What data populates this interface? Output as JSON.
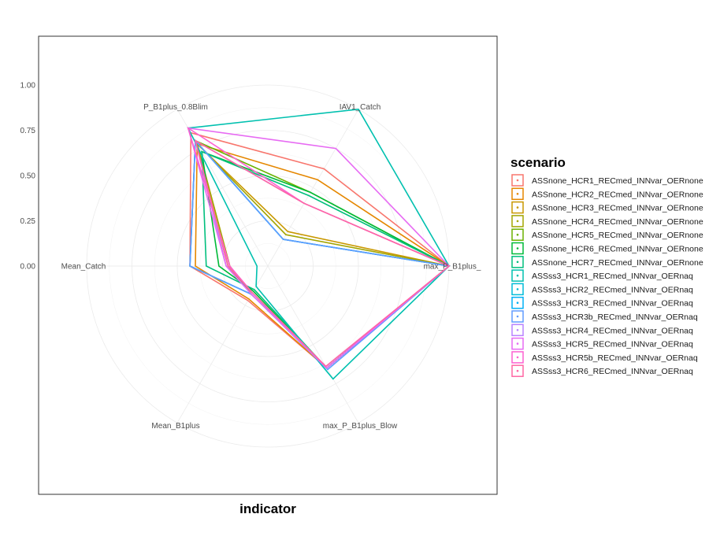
{
  "chart_data": {
    "type": "radar",
    "title": "",
    "xlabel": "indicator",
    "ylabel": "",
    "ylim": [
      0,
      1
    ],
    "yticks": [
      0.0,
      0.25,
      0.5,
      0.75,
      1.0
    ],
    "ytick_labels": [
      "0.00",
      "0.25",
      "0.50",
      "0.75",
      "1.00"
    ],
    "grid": true,
    "legend_title": "scenario",
    "legend_position": "right",
    "axes": [
      "IAV1_Catch",
      "max_P_B1plus_",
      "max_P_B1plus_Blow",
      "Mean_B1plus",
      "Mean_Catch",
      "P_B1plus_0.8Blim"
    ],
    "series": [
      {
        "name": "ASSnone_HCR1_RECmed_INNvar_OERnone",
        "color": "#F8766D",
        "values": [
          0.62,
          1.0,
          0.65,
          0.22,
          0.43,
          0.85
        ]
      },
      {
        "name": "ASSnone_HCR2_RECmed_INNvar_OERnone",
        "color": "#E58700",
        "values": [
          0.55,
          1.0,
          0.65,
          0.21,
          0.4,
          0.78
        ]
      },
      {
        "name": "ASSnone_HCR3_RECmed_INNvar_OERnone",
        "color": "#C99800",
        "values": [
          0.22,
          1.0,
          0.65,
          0.18,
          0.21,
          0.78
        ]
      },
      {
        "name": "ASSnone_HCR4_RECmed_INNvar_OERnone",
        "color": "#A3A500",
        "values": [
          0.2,
          1.0,
          0.65,
          0.18,
          0.21,
          0.78
        ]
      },
      {
        "name": "ASSnone_HCR5_RECmed_INNvar_OERnone",
        "color": "#6BB100",
        "values": [
          0.47,
          1.0,
          0.65,
          0.18,
          0.22,
          0.8
        ]
      },
      {
        "name": "ASSnone_HCR6_RECmed_INNvar_OERnone",
        "color": "#00BA38",
        "values": [
          0.47,
          1.0,
          0.65,
          0.16,
          0.27,
          0.73
        ]
      },
      {
        "name": "ASSnone_HCR7_RECmed_INNvar_OERnone",
        "color": "#00BF7D",
        "values": [
          0.45,
          1.0,
          0.65,
          0.15,
          0.34,
          0.73
        ]
      },
      {
        "name": "ASSss3_HCR1_RECmed_INNvar_OERnaq",
        "color": "#00C0AF",
        "values": [
          1.0,
          1.0,
          0.72,
          0.13,
          0.06,
          0.88
        ]
      },
      {
        "name": "ASSss3_HCR2_RECmed_INNvar_OERnaq",
        "color": "#00BCD8",
        "values": [
          0.17,
          1.0,
          0.65,
          0.18,
          0.43,
          0.8
        ]
      },
      {
        "name": "ASSss3_HCR3_RECmed_INNvar_OERnaq",
        "color": "#00B0F6",
        "values": [
          0.17,
          1.0,
          0.65,
          0.18,
          0.43,
          0.8
        ]
      },
      {
        "name": "ASSss3_HCR3b_RECmed_INNvar_OERnaq",
        "color": "#619CFF",
        "values": [
          0.17,
          1.0,
          0.66,
          0.18,
          0.43,
          0.8
        ]
      },
      {
        "name": "ASSss3_HCR4_RECmed_INNvar_OERnaq",
        "color": "#B983FF",
        "values": [
          0.4,
          1.0,
          0.65,
          0.18,
          0.23,
          0.8
        ]
      },
      {
        "name": "ASSss3_HCR5_RECmed_INNvar_OERnaq",
        "color": "#E76BF3",
        "values": [
          0.75,
          1.0,
          0.65,
          0.18,
          0.23,
          0.88
        ]
      },
      {
        "name": "ASSss3_HCR5b_RECmed_INNvar_OERnaq",
        "color": "#FD61D1",
        "values": [
          0.4,
          1.0,
          0.64,
          0.17,
          0.21,
          0.88
        ]
      },
      {
        "name": "ASSss3_HCR6_RECmed_INNvar_OERnaq",
        "color": "#FF67A4",
        "values": [
          0.4,
          1.0,
          0.64,
          0.17,
          0.22,
          0.8
        ]
      }
    ]
  }
}
